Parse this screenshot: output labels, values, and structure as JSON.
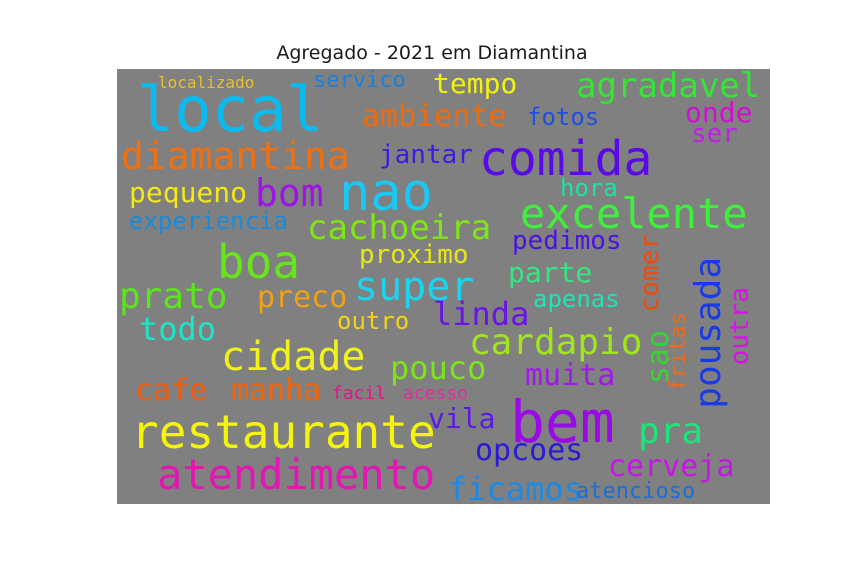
{
  "title": "Agregado - 2021 em Diamantina",
  "words": [
    {
      "text": "localizado",
      "color": "#e6c229"
    },
    {
      "text": "servico",
      "color": "#1f7fd6"
    },
    {
      "text": "tempo",
      "color": "#f2f20d"
    },
    {
      "text": "agradavel",
      "color": "#33e633"
    },
    {
      "text": "local",
      "color": "#0abbf0"
    },
    {
      "text": "ambiente",
      "color": "#f06a0a"
    },
    {
      "text": "fotos",
      "color": "#1f4fe0"
    },
    {
      "text": "onde",
      "color": "#d10fd1"
    },
    {
      "text": "ser",
      "color": "#c01fe6"
    },
    {
      "text": "diamantina",
      "color": "#f07010"
    },
    {
      "text": "jantar",
      "color": "#3c1ce0"
    },
    {
      "text": "comida",
      "color": "#5a0ae6"
    },
    {
      "text": "nao",
      "color": "#1ac8f5"
    },
    {
      "text": "bom",
      "color": "#9e14e6"
    },
    {
      "text": "pequeno",
      "color": "#f2e814"
    },
    {
      "text": "hora",
      "color": "#1fe0a8"
    },
    {
      "text": "excelente",
      "color": "#3cf03c"
    },
    {
      "text": "experiencia",
      "color": "#1a8ad6"
    },
    {
      "text": "cachoeira",
      "color": "#7ee614"
    },
    {
      "text": "pedimos",
      "color": "#4a14e0"
    },
    {
      "text": "boa",
      "color": "#66e61a"
    },
    {
      "text": "proximo",
      "color": "#e6e61a"
    },
    {
      "text": "comer",
      "color": "#f04a0a"
    },
    {
      "text": "pousada",
      "color": "#1a3ae6"
    },
    {
      "text": "parte",
      "color": "#33e680"
    },
    {
      "text": "outra",
      "color": "#d414e6"
    },
    {
      "text": "prato",
      "color": "#5ae61a"
    },
    {
      "text": "preco",
      "color": "#f0a014"
    },
    {
      "text": "super",
      "color": "#1ad4f0"
    },
    {
      "text": "apenas",
      "color": "#1ae6b4"
    },
    {
      "text": "todo",
      "color": "#1ae6c8"
    },
    {
      "text": "outro",
      "color": "#f2d414"
    },
    {
      "text": "linda",
      "color": "#6a14e6"
    },
    {
      "text": "fritas",
      "color": "#f06a1a"
    },
    {
      "text": "cardapio",
      "color": "#a0e61a"
    },
    {
      "text": "sao",
      "color": "#33d633"
    },
    {
      "text": "cidade",
      "color": "#f2f21a"
    },
    {
      "text": "pouco",
      "color": "#7ae61a"
    },
    {
      "text": "muita",
      "color": "#a01ae6"
    },
    {
      "text": "cafe",
      "color": "#f05a0a"
    },
    {
      "text": "manha",
      "color": "#f0640a"
    },
    {
      "text": "facil",
      "color": "#e6148c"
    },
    {
      "text": "acesso",
      "color": "#e62aa0"
    },
    {
      "text": "restaurante",
      "color": "#f5f50a"
    },
    {
      "text": "vila",
      "color": "#5a1ae6"
    },
    {
      "text": "bem",
      "color": "#9a0ae6"
    },
    {
      "text": "pra",
      "color": "#1ae67a"
    },
    {
      "text": "opcoes",
      "color": "#2a1ad6"
    },
    {
      "text": "atendimento",
      "color": "#e614b4"
    },
    {
      "text": "cerveja",
      "color": "#c814e6"
    },
    {
      "text": "ficamos",
      "color": "#1a8ae6"
    },
    {
      "text": "atencioso",
      "color": "#1a6ed6"
    }
  ]
}
